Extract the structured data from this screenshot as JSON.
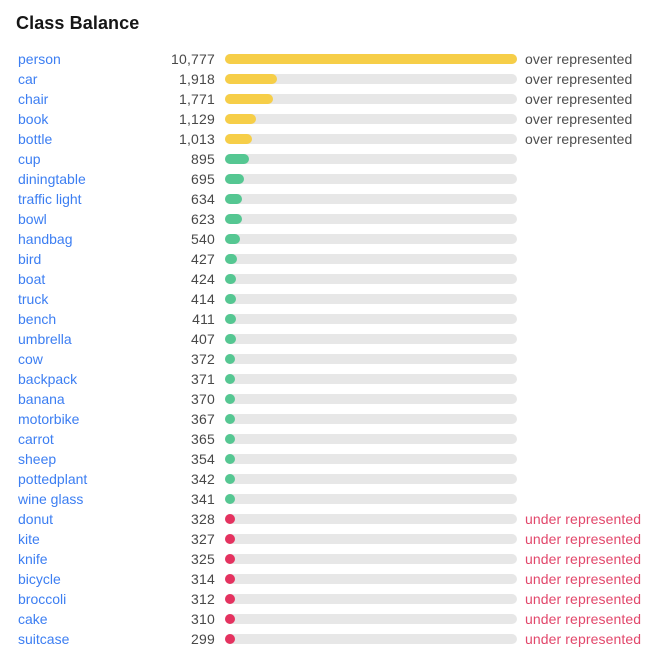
{
  "title": "Class Balance",
  "status_labels": {
    "over": "over represented",
    "under": "under represented",
    "normal": ""
  },
  "colors": {
    "over_bar": "#f6ce48",
    "normal_bar": "#55c792",
    "under_bar": "#e4325f",
    "track": "#e7e7e7",
    "link_blue": "#3c7ef2",
    "count_text": "#484848",
    "over_text": "#4d4d4d",
    "under_text": "#e2476b"
  },
  "chart_data": {
    "type": "bar",
    "orientation": "horizontal",
    "title": "Class Balance",
    "max_value": 10777,
    "legend_position": "none",
    "grid": false,
    "rows": [
      {
        "label": "person",
        "count_display": "10,777",
        "value": 10777,
        "status": "over"
      },
      {
        "label": "car",
        "count_display": "1,918",
        "value": 1918,
        "status": "over"
      },
      {
        "label": "chair",
        "count_display": "1,771",
        "value": 1771,
        "status": "over"
      },
      {
        "label": "book",
        "count_display": "1,129",
        "value": 1129,
        "status": "over"
      },
      {
        "label": "bottle",
        "count_display": "1,013",
        "value": 1013,
        "status": "over"
      },
      {
        "label": "cup",
        "count_display": "895",
        "value": 895,
        "status": "normal"
      },
      {
        "label": "diningtable",
        "count_display": "695",
        "value": 695,
        "status": "normal"
      },
      {
        "label": "traffic light",
        "count_display": "634",
        "value": 634,
        "status": "normal"
      },
      {
        "label": "bowl",
        "count_display": "623",
        "value": 623,
        "status": "normal"
      },
      {
        "label": "handbag",
        "count_display": "540",
        "value": 540,
        "status": "normal"
      },
      {
        "label": "bird",
        "count_display": "427",
        "value": 427,
        "status": "normal"
      },
      {
        "label": "boat",
        "count_display": "424",
        "value": 424,
        "status": "normal"
      },
      {
        "label": "truck",
        "count_display": "414",
        "value": 414,
        "status": "normal"
      },
      {
        "label": "bench",
        "count_display": "411",
        "value": 411,
        "status": "normal"
      },
      {
        "label": "umbrella",
        "count_display": "407",
        "value": 407,
        "status": "normal"
      },
      {
        "label": "cow",
        "count_display": "372",
        "value": 372,
        "status": "normal"
      },
      {
        "label": "backpack",
        "count_display": "371",
        "value": 371,
        "status": "normal"
      },
      {
        "label": "banana",
        "count_display": "370",
        "value": 370,
        "status": "normal"
      },
      {
        "label": "motorbike",
        "count_display": "367",
        "value": 367,
        "status": "normal"
      },
      {
        "label": "carrot",
        "count_display": "365",
        "value": 365,
        "status": "normal"
      },
      {
        "label": "sheep",
        "count_display": "354",
        "value": 354,
        "status": "normal"
      },
      {
        "label": "pottedplant",
        "count_display": "342",
        "value": 342,
        "status": "normal"
      },
      {
        "label": "wine glass",
        "count_display": "341",
        "value": 341,
        "status": "normal"
      },
      {
        "label": "donut",
        "count_display": "328",
        "value": 328,
        "status": "under"
      },
      {
        "label": "kite",
        "count_display": "327",
        "value": 327,
        "status": "under"
      },
      {
        "label": "knife",
        "count_display": "325",
        "value": 325,
        "status": "under"
      },
      {
        "label": "bicycle",
        "count_display": "314",
        "value": 314,
        "status": "under"
      },
      {
        "label": "broccoli",
        "count_display": "312",
        "value": 312,
        "status": "under"
      },
      {
        "label": "cake",
        "count_display": "310",
        "value": 310,
        "status": "under"
      },
      {
        "label": "suitcase",
        "count_display": "299",
        "value": 299,
        "status": "under"
      }
    ]
  }
}
